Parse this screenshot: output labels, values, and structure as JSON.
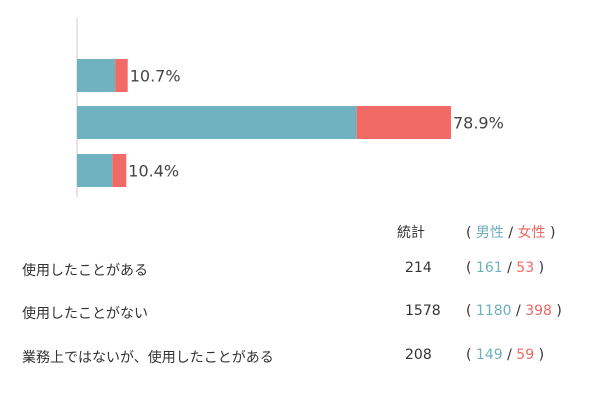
{
  "colors": {
    "male": "#71b2c1",
    "female": "#f16a65",
    "axis": "#cccccc"
  },
  "chart_data": {
    "type": "bar",
    "orientation": "horizontal",
    "stacked": true,
    "categories": [
      "使用したことがある",
      "使用したことがない",
      "業務上ではないが、使用したことがある"
    ],
    "series": [
      {
        "name": "男性",
        "values": [
          161,
          1180,
          149
        ]
      },
      {
        "name": "女性",
        "values": [
          53,
          398,
          59
        ]
      }
    ],
    "data_labels": [
      "10.7%",
      "78.9%",
      "10.4%"
    ]
  },
  "stats": {
    "header_total": "統計",
    "header_open": "(",
    "header_male": "男性",
    "header_slash": "/",
    "header_female": "女性",
    "header_close": ")",
    "rows": [
      {
        "label": "使用したことがある",
        "total": "214",
        "male": "161",
        "female": "53"
      },
      {
        "label": "使用したことがない",
        "total": "1578",
        "male": "1180",
        "female": "398"
      },
      {
        "label": "業務上ではないが、使用したことがある",
        "total": "208",
        "male": "149",
        "female": "59"
      }
    ],
    "open": "(",
    "slash": "/",
    "close": ")"
  }
}
